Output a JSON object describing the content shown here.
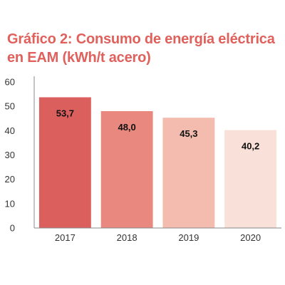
{
  "chart_data": {
    "type": "bar",
    "title": "Gráfico 2: Consumo de energía eléctrica en EAM (kWh/t acero)",
    "categories": [
      "2017",
      "2018",
      "2019",
      "2020"
    ],
    "values": [
      53.7,
      48.0,
      45.3,
      40.2
    ],
    "value_labels": [
      "53,7",
      "48,0",
      "45,3",
      "40,2"
    ],
    "yticks": [
      "0",
      "10",
      "20",
      "30",
      "40",
      "50",
      "60"
    ],
    "ylim": [
      0,
      60
    ],
    "xlabel": "",
    "ylabel": "",
    "grid": false,
    "colors": {
      "title": "#e0605c",
      "bars": [
        "#db5f5d",
        "#e8887e",
        "#f3bcae",
        "#f9e0d8"
      ],
      "axis": "#888888"
    }
  }
}
